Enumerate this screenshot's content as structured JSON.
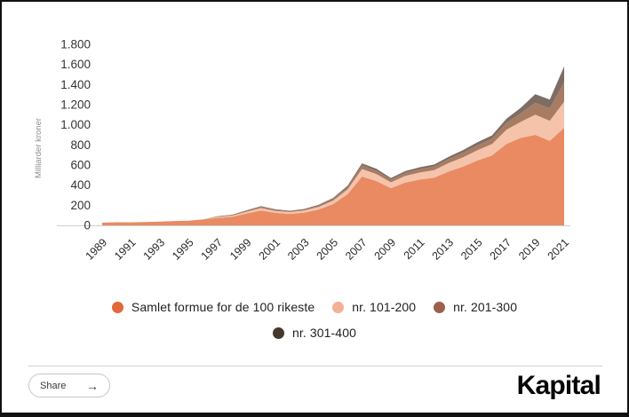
{
  "page": {
    "background": "#ffffff",
    "frame_color": "#111111"
  },
  "chart_data": {
    "type": "area",
    "stacked": true,
    "title": "",
    "xlabel": "",
    "ylabel": "Milliarder kroner",
    "ylim": [
      0,
      1800
    ],
    "ytick_step": 200,
    "ytick_labels": [
      "0",
      "200",
      "400",
      "600",
      "800",
      "1.000",
      "1.200",
      "1.400",
      "1.600",
      "1.800"
    ],
    "grid": false,
    "legend_position": "bottom",
    "x": [
      1989,
      1990,
      1991,
      1992,
      1993,
      1994,
      1995,
      1996,
      1997,
      1998,
      1999,
      2000,
      2001,
      2002,
      2003,
      2004,
      2005,
      2006,
      2007,
      2008,
      2009,
      2010,
      2011,
      2012,
      2013,
      2014,
      2015,
      2016,
      2017,
      2018,
      2019,
      2020,
      2021
    ],
    "xtick_labels": [
      "1989",
      "1991",
      "1993",
      "1995",
      "1997",
      "1999",
      "2001",
      "2003",
      "2005",
      "2007",
      "2009",
      "2011",
      "2013",
      "2015",
      "2017",
      "2019",
      "2021"
    ],
    "series": [
      {
        "name": "Samlet formue for de 100 rikeste",
        "color": "#E98A62",
        "values": [
          27,
          31,
          30,
          33,
          38,
          43,
          47,
          60,
          74,
          84,
          118,
          148,
          124,
          114,
          127,
          158,
          212,
          310,
          485,
          440,
          370,
          425,
          455,
          475,
          535,
          585,
          645,
          695,
          810,
          870,
          900,
          840,
          970
        ]
      },
      {
        "name": "nr. 101-200",
        "color": "#F4C3AA",
        "values": [
          0,
          0,
          0,
          0,
          0,
          0,
          0,
          0,
          10,
          12,
          18,
          24,
          20,
          18,
          20,
          26,
          34,
          48,
          75,
          70,
          58,
          67,
          71,
          75,
          84,
          93,
          103,
          113,
          140,
          160,
          200,
          200,
          260
        ]
      },
      {
        "name": "nr. 201-300",
        "color": "#A77C63",
        "values": [
          0,
          0,
          0,
          0,
          0,
          0,
          0,
          0,
          5,
          6,
          9,
          12,
          10,
          9,
          10,
          13,
          17,
          23,
          36,
          33,
          27,
          31,
          33,
          35,
          40,
          45,
          50,
          55,
          70,
          85,
          120,
          125,
          195
        ]
      },
      {
        "name": "nr. 301-400",
        "color": "#7D6D64",
        "values": [
          0,
          0,
          0,
          0,
          0,
          0,
          0,
          0,
          3,
          4,
          5,
          7,
          6,
          5,
          6,
          8,
          10,
          13,
          21,
          19,
          16,
          18,
          19,
          20,
          23,
          26,
          29,
          32,
          40,
          55,
          85,
          85,
          155
        ]
      }
    ],
    "axis_text_color": "#333333",
    "axis_line_color": "#cfcfcf",
    "ylabel_color": "#8f8f8f"
  },
  "legend": {
    "entries": [
      {
        "label": "Samlet formue for de 100 rikeste",
        "color": "#E2693A"
      },
      {
        "label": "nr. 101-200",
        "color": "#F2B197"
      },
      {
        "label": "nr. 201-300",
        "color": "#9C604B"
      },
      {
        "label": "nr. 301-400",
        "color": "#44382F"
      }
    ]
  },
  "footer": {
    "share_label": "Share",
    "share_arrow": "→",
    "brand": "Kapital"
  }
}
